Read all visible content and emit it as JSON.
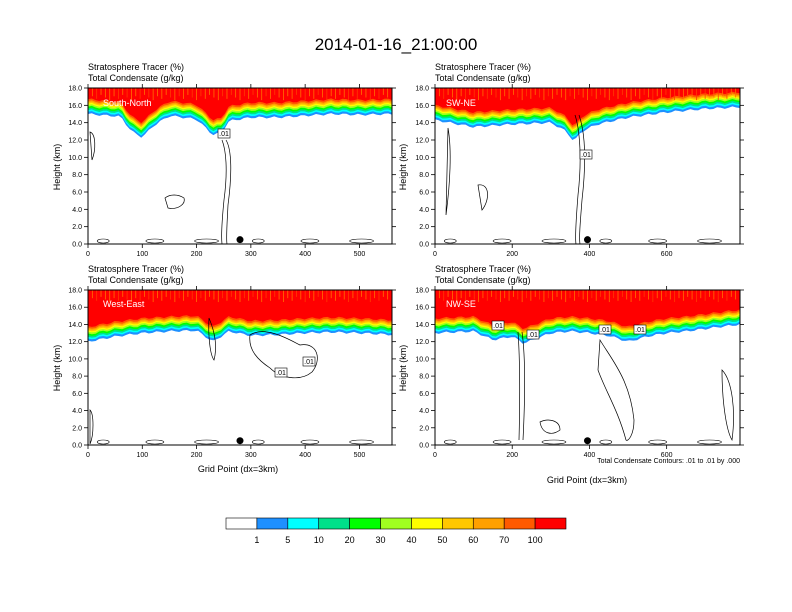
{
  "title": "2014-01-16_21:00:00",
  "chart_data": [
    {
      "type": "heatmap",
      "panel_label": "South-North",
      "subtitle_lines": [
        "Stratosphere Tracer   (%)",
        "Total Condensate   (g/kg)"
      ],
      "ylabel": "Height (km)",
      "xlabel": "",
      "xlim": [
        0,
        560
      ],
      "ylim": [
        0,
        18
      ],
      "xticks": [
        "0",
        "100",
        "200",
        "300",
        "400",
        "500"
      ],
      "yticks": [
        "0.0",
        "2.0",
        "4.0",
        "6.0",
        "8.0",
        "10.0",
        "12.0",
        "14.0",
        "16.0",
        "18.0"
      ],
      "contour_labels": [
        ".01"
      ],
      "marker_x": 280,
      "tracer_profile": {
        "x": [
          0,
          60,
          80,
          100,
          120,
          150,
          200,
          230,
          245,
          260,
          300,
          350,
          400,
          450,
          500,
          560
        ],
        "base": [
          15.0,
          14.7,
          13.0,
          12.3,
          13.6,
          14.8,
          14.4,
          12.6,
          12.8,
          14.2,
          14.6,
          14.6,
          14.8,
          15.0,
          14.9,
          15.0
        ]
      }
    },
    {
      "type": "heatmap",
      "panel_label": "SW-NE",
      "subtitle_lines": [
        "Stratosphere Tracer   (%)",
        "Total Condensate   (g/kg)"
      ],
      "ylabel": "Height (km)",
      "xlabel": "",
      "xlim": [
        0,
        790
      ],
      "ylim": [
        0,
        18
      ],
      "xticks": [
        "0",
        "200",
        "400",
        "600"
      ],
      "yticks": [
        "0.0",
        "2.0",
        "4.0",
        "6.0",
        "8.0",
        "10.0",
        "12.0",
        "14.0",
        "16.0",
        "18.0"
      ],
      "contour_labels": [
        ".01"
      ],
      "marker_x": 395,
      "tracer_profile": {
        "x": [
          0,
          100,
          200,
          300,
          340,
          360,
          380,
          420,
          500,
          600,
          700,
          790
        ],
        "base": [
          14.3,
          13.5,
          13.8,
          14.0,
          13.0,
          11.8,
          13.0,
          13.8,
          14.6,
          15.2,
          15.6,
          15.8
        ]
      }
    },
    {
      "type": "heatmap",
      "panel_label": "West-East",
      "subtitle_lines": [
        "Stratosphere Tracer   (%)",
        "Total Condensate   (g/kg)"
      ],
      "ylabel": "Height (km)",
      "xlabel": "Grid Point (dx=3km)",
      "xlim": [
        0,
        560
      ],
      "ylim": [
        0,
        18
      ],
      "xticks": [
        "0",
        "100",
        "200",
        "300",
        "400",
        "500"
      ],
      "yticks": [
        "0.0",
        "2.0",
        "4.0",
        "6.0",
        "8.0",
        "10.0",
        "12.0",
        "14.0",
        "16.0",
        "18.0"
      ],
      "contour_labels": [
        ".01",
        ".01"
      ],
      "marker_x": 280,
      "tracer_profile": {
        "x": [
          0,
          50,
          100,
          150,
          200,
          230,
          260,
          300,
          350,
          400,
          450,
          500,
          560
        ],
        "base": [
          12.0,
          12.6,
          13.0,
          13.2,
          13.3,
          12.0,
          13.2,
          12.7,
          12.8,
          13.0,
          13.1,
          13.0,
          12.8
        ]
      }
    },
    {
      "type": "heatmap",
      "panel_label": "NW-SE",
      "subtitle_lines": [
        "Stratosphere Tracer   (%)",
        "Total Condensate   (g/kg)"
      ],
      "ylabel": "Height (km)",
      "xlabel": "Grid Point (dx=3km)",
      "xlim": [
        0,
        790
      ],
      "ylim": [
        0,
        18
      ],
      "xticks": [
        "0",
        "200",
        "400",
        "600"
      ],
      "yticks": [
        "0.0",
        "2.0",
        "4.0",
        "6.0",
        "8.0",
        "10.0",
        "12.0",
        "14.0",
        "16.0",
        "18.0"
      ],
      "contour_labels": [
        ".01",
        ".01",
        ".01",
        ".01"
      ],
      "marker_x": 395,
      "footnote": "Total Condensate Contours: .01 to .01 by .000",
      "tracer_profile": {
        "x": [
          0,
          100,
          150,
          200,
          230,
          300,
          350,
          400,
          450,
          500,
          550,
          600,
          650,
          700,
          790
        ],
        "base": [
          13.0,
          13.2,
          12.2,
          12.6,
          11.8,
          13.0,
          13.2,
          13.0,
          12.7,
          12.0,
          12.6,
          13.0,
          13.2,
          13.5,
          14.0
        ]
      }
    }
  ],
  "colorbar": {
    "labels": [
      "1",
      "5",
      "10",
      "20",
      "30",
      "40",
      "50",
      "60",
      "70",
      "100"
    ],
    "colors": [
      "#ffffff",
      "#1e90ff",
      "#00ffff",
      "#00e08a",
      "#00ff00",
      "#a0ff20",
      "#ffff00",
      "#ffc800",
      "#ffa000",
      "#ff5a00",
      "#ff0000"
    ]
  }
}
